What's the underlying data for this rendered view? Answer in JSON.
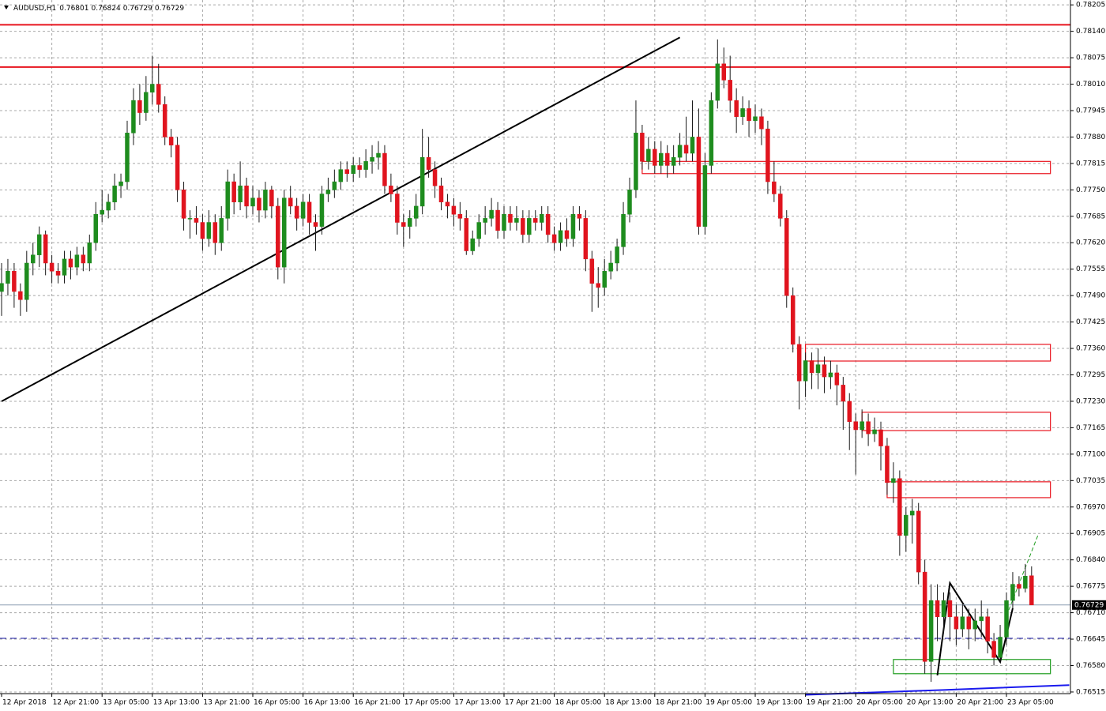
{
  "chart_data": {
    "type": "candlestick",
    "symbol": "AUDUSD,H1",
    "up_color": "#1e8c1e",
    "down_color": "#e0141e",
    "ylim": [
      0.76511,
      0.78217
    ],
    "yticks": [
      0.78205,
      {
        "value": 0.7814,
        "label": "0.78140"
      },
      0.78075,
      {
        "value": 0.7801,
        "label": "0.78010"
      },
      0.77945,
      {
        "value": 0.7788,
        "label": "0.77880"
      },
      0.77815,
      {
        "value": 0.7775,
        "label": "0.77750"
      },
      0.77685,
      {
        "value": 0.7762,
        "label": "0.77620"
      },
      0.77555,
      {
        "value": 0.7749,
        "label": "0.77490"
      },
      0.77425,
      {
        "value": 0.7736,
        "label": "0.77360"
      },
      0.77295,
      {
        "value": 0.7723,
        "label": "0.77230"
      },
      0.77165,
      {
        "value": 0.771,
        "label": "0.77100"
      },
      0.77035,
      {
        "value": 0.7697,
        "label": "0.76970"
      },
      0.76905,
      {
        "value": 0.7684,
        "label": "0.76840"
      },
      0.76775,
      {
        "value": 0.7671,
        "label": "0.76710"
      },
      0.76645,
      {
        "value": 0.7658,
        "label": "0.76580"
      },
      0.76515
    ],
    "grid": true,
    "categories": [
      "12 Apr 2018",
      null,
      null,
      null,
      null,
      null,
      null,
      null,
      "12 Apr 21:00",
      null,
      null,
      null,
      null,
      null,
      null,
      null,
      "13 Apr 05:00",
      null,
      null,
      null,
      null,
      null,
      null,
      null,
      "13 Apr 13:00",
      null,
      null,
      null,
      null,
      null,
      null,
      null,
      "13 Apr 21:00",
      null,
      null,
      null,
      null,
      null,
      null,
      null,
      "16 Apr 05:00",
      null,
      null,
      null,
      null,
      null,
      null,
      null,
      "16 Apr 13:00",
      null,
      null,
      null,
      null,
      null,
      null,
      null,
      "16 Apr 21:00",
      null,
      null,
      null,
      null,
      null,
      null,
      null,
      "17 Apr 05:00",
      null,
      null,
      null,
      null,
      null,
      null,
      null,
      "17 Apr 13:00",
      null,
      null,
      null,
      null,
      null,
      null,
      null,
      "17 Apr 21:00",
      null,
      null,
      null,
      null,
      null,
      null,
      null,
      "18 Apr 05:00",
      null,
      null,
      null,
      null,
      null,
      null,
      null,
      "18 Apr 13:00",
      null,
      null,
      null,
      null,
      null,
      null,
      null,
      "18 Apr 21:00",
      null,
      null,
      null,
      null,
      null,
      null,
      null,
      "19 Apr 05:00",
      null,
      null,
      null,
      null,
      null,
      null,
      null,
      "19 Apr 13:00",
      null,
      null,
      null,
      null,
      null,
      null,
      null,
      "19 Apr 21:00",
      null,
      null,
      null,
      null,
      null,
      null,
      null,
      "20 Apr 05:00",
      null,
      null,
      null,
      null,
      null,
      null,
      null,
      "20 Apr 13:00",
      null,
      null,
      null,
      null,
      null,
      null,
      null,
      "20 Apr 21:00",
      null,
      null,
      null,
      null,
      null,
      null,
      null,
      "23 Apr 05:00",
      null,
      null,
      null,
      null
    ],
    "open": [
      0.775,
      0.7752,
      0.7755,
      0.775,
      0.7748,
      0.7757,
      0.7759,
      0.7764,
      0.7757,
      0.7755,
      0.7754,
      0.7758,
      0.7756,
      0.7759,
      0.7757,
      0.7762,
      0.7769,
      0.777,
      0.7772,
      0.7776,
      0.7777,
      0.7789,
      0.7797,
      0.7794,
      0.7799,
      0.7801,
      0.7796,
      0.7788,
      0.7786,
      0.7775,
      0.7768,
      0.7768,
      0.7767,
      0.7763,
      0.7767,
      0.7762,
      0.7768,
      0.7777,
      0.7772,
      0.7776,
      0.7771,
      0.7773,
      0.777,
      0.7775,
      0.7771,
      0.7756,
      0.7773,
      0.7771,
      0.7768,
      0.7772,
      0.7767,
      0.7766,
      0.7774,
      0.7775,
      0.7777,
      0.778,
      0.7779,
      0.7781,
      0.778,
      0.7782,
      0.7783,
      0.7784,
      0.7776,
      0.7774,
      0.7767,
      0.7766,
      0.7768,
      0.7771,
      0.7783,
      0.778,
      0.7776,
      0.7772,
      0.7771,
      0.7769,
      0.7768,
      0.776,
      0.7763,
      0.7767,
      0.7768,
      0.777,
      0.7765,
      0.7769,
      0.7767,
      0.7768,
      0.7764,
      0.7768,
      0.7767,
      0.7769,
      0.7764,
      0.7762,
      0.7765,
      0.7763,
      0.7769,
      0.7768,
      0.7758,
      0.7752,
      0.7751,
      0.7755,
      0.7757,
      0.7761,
      0.7769,
      0.7775,
      0.7789,
      0.7782,
      0.7785,
      0.7781,
      0.7784,
      0.7781,
      0.7783,
      0.7786,
      0.7784,
      0.7788,
      0.7766,
      0.7781,
      0.7797,
      0.7806,
      0.7802,
      0.7797,
      0.7793,
      0.7795,
      0.7792,
      0.7793,
      0.779,
      0.7777,
      0.7774,
      0.7768,
      0.7749,
      0.7737,
      0.7728,
      0.7733,
      0.773,
      0.7732,
      0.7729,
      0.773,
      0.7727,
      0.7723,
      0.7718,
      0.7716,
      0.7718,
      0.7715,
      0.7716,
      0.7712,
      0.7703,
      0.7704,
      0.769,
      0.7695,
      0.7696,
      0.7681,
      0.7659,
      0.7674,
      0.767,
      0.7674,
      0.767,
      0.7667,
      0.767,
      0.7667,
      0.7669,
      0.767,
      0.7664,
      0.766,
      0.7665,
      0.7674,
      0.7678,
      0.7677,
      0.76801
    ],
    "high": [
      0.7757,
      0.7758,
      0.7757,
      0.7752,
      0.776,
      0.7762,
      0.7766,
      0.7765,
      0.7759,
      0.7757,
      0.776,
      0.776,
      0.7761,
      0.7761,
      0.7764,
      0.7772,
      0.7775,
      0.7774,
      0.7779,
      0.7779,
      0.7792,
      0.78,
      0.7801,
      0.7803,
      0.7808,
      0.7806,
      0.7798,
      0.779,
      0.7788,
      0.7777,
      0.777,
      0.7771,
      0.7769,
      0.777,
      0.7769,
      0.7771,
      0.778,
      0.7779,
      0.7782,
      0.7778,
      0.7776,
      0.7775,
      0.7777,
      0.7776,
      0.7773,
      0.7775,
      0.7776,
      0.7773,
      0.7774,
      0.7774,
      0.7769,
      0.7776,
      0.7778,
      0.778,
      0.7782,
      0.7782,
      0.7783,
      0.7783,
      0.7785,
      0.7786,
      0.7787,
      0.7786,
      0.7779,
      0.7776,
      0.7769,
      0.777,
      0.7774,
      0.779,
      0.7788,
      0.7782,
      0.7778,
      0.7774,
      0.7773,
      0.7772,
      0.777,
      0.7765,
      0.7769,
      0.7771,
      0.7773,
      0.7772,
      0.7771,
      0.7771,
      0.7771,
      0.777,
      0.777,
      0.777,
      0.7771,
      0.7771,
      0.7766,
      0.7767,
      0.7768,
      0.7771,
      0.7771,
      0.777,
      0.776,
      0.7756,
      0.7758,
      0.776,
      0.7763,
      0.7772,
      0.7778,
      0.7797,
      0.7791,
      0.7788,
      0.7787,
      0.7787,
      0.7786,
      0.7786,
      0.7789,
      0.7793,
      0.7797,
      0.7795,
      0.7784,
      0.7799,
      0.7812,
      0.781,
      0.7808,
      0.78,
      0.7798,
      0.7797,
      0.7796,
      0.7795,
      0.7792,
      0.7782,
      0.7776,
      0.777,
      0.7751,
      0.7739,
      0.7735,
      0.7735,
      0.7736,
      0.7734,
      0.7733,
      0.7732,
      0.7729,
      0.7725,
      0.772,
      0.7721,
      0.772,
      0.7719,
      0.7718,
      0.7714,
      0.7708,
      0.7706,
      0.7697,
      0.7699,
      0.7698,
      0.7684,
      0.7678,
      0.7678,
      0.7676,
      0.7676,
      0.7673,
      0.7673,
      0.7672,
      0.7672,
      0.7674,
      0.7672,
      0.7666,
      0.7668,
      0.7676,
      0.7681,
      0.768,
      0.7683,
      0.76824
    ],
    "low": [
      0.7744,
      0.7749,
      0.7746,
      0.7744,
      0.7745,
      0.7754,
      0.7756,
      0.7754,
      0.7752,
      0.7752,
      0.7752,
      0.7753,
      0.7754,
      0.7755,
      0.7755,
      0.776,
      0.7767,
      0.7768,
      0.777,
      0.7773,
      0.7775,
      0.7786,
      0.7791,
      0.7792,
      0.7796,
      0.7794,
      0.7786,
      0.7783,
      0.7772,
      0.7765,
      0.7763,
      0.7764,
      0.776,
      0.7761,
      0.7759,
      0.776,
      0.7765,
      0.7769,
      0.777,
      0.7768,
      0.7769,
      0.7767,
      0.7768,
      0.7768,
      0.7753,
      0.7752,
      0.7769,
      0.7765,
      0.7766,
      0.7764,
      0.776,
      0.7764,
      0.7772,
      0.7773,
      0.7775,
      0.7777,
      0.7777,
      0.7778,
      0.7778,
      0.7779,
      0.778,
      0.7774,
      0.7772,
      0.7764,
      0.7761,
      0.7763,
      0.7766,
      0.7769,
      0.7778,
      0.7773,
      0.777,
      0.7768,
      0.7766,
      0.7765,
      0.7759,
      0.7759,
      0.7761,
      0.7764,
      0.7766,
      0.7763,
      0.7763,
      0.7765,
      0.7765,
      0.7762,
      0.7762,
      0.7765,
      0.7765,
      0.7762,
      0.776,
      0.776,
      0.7761,
      0.7761,
      0.7765,
      0.7755,
      0.7745,
      0.7746,
      0.7749,
      0.7753,
      0.7755,
      0.7759,
      0.7767,
      0.7773,
      0.778,
      0.778,
      0.7779,
      0.7779,
      0.7778,
      0.7779,
      0.7781,
      0.7782,
      0.7782,
      0.7764,
      0.7764,
      0.7779,
      0.7795,
      0.78,
      0.7794,
      0.7789,
      0.7791,
      0.7788,
      0.7789,
      0.7786,
      0.7774,
      0.7772,
      0.7766,
      0.7746,
      0.7735,
      0.7721,
      0.7724,
      0.7726,
      0.7726,
      0.7725,
      0.7726,
      0.7722,
      0.7716,
      0.7711,
      0.7705,
      0.7714,
      0.7712,
      0.7713,
      0.7706,
      0.77,
      0.7698,
      0.7685,
      0.7686,
      0.7688,
      0.7678,
      0.7656,
      0.7654,
      0.7664,
      0.7666,
      0.7664,
      0.7663,
      0.7665,
      0.7662,
      0.7664,
      0.7665,
      0.7661,
      0.7658,
      0.7659,
      0.7663,
      0.7672,
      0.7675,
      0.7676,
      0.76729
    ],
    "close": [
      0.7752,
      0.7755,
      0.775,
      0.7748,
      0.7757,
      0.7759,
      0.7764,
      0.7757,
      0.7755,
      0.7754,
      0.7758,
      0.7756,
      0.7759,
      0.7757,
      0.7762,
      0.7769,
      0.777,
      0.7772,
      0.7776,
      0.7777,
      0.7789,
      0.7797,
      0.7794,
      0.7799,
      0.7801,
      0.7796,
      0.7788,
      0.7786,
      0.7775,
      0.7768,
      0.7768,
      0.7767,
      0.7763,
      0.7767,
      0.7762,
      0.7768,
      0.7777,
      0.7772,
      0.7776,
      0.7771,
      0.7773,
      0.777,
      0.7775,
      0.7771,
      0.7756,
      0.7773,
      0.7771,
      0.7768,
      0.7772,
      0.7767,
      0.7766,
      0.7774,
      0.7775,
      0.7777,
      0.778,
      0.7779,
      0.7781,
      0.778,
      0.7782,
      0.7783,
      0.7784,
      0.7776,
      0.7774,
      0.7767,
      0.7766,
      0.7768,
      0.7771,
      0.7783,
      0.778,
      0.7776,
      0.7772,
      0.7771,
      0.7769,
      0.7768,
      0.776,
      0.7763,
      0.7767,
      0.7768,
      0.777,
      0.7765,
      0.7769,
      0.7767,
      0.7768,
      0.7764,
      0.7768,
      0.7767,
      0.7769,
      0.7764,
      0.7762,
      0.7765,
      0.7763,
      0.7769,
      0.7768,
      0.7758,
      0.7752,
      0.7751,
      0.7755,
      0.7757,
      0.7761,
      0.7769,
      0.7775,
      0.7789,
      0.7782,
      0.7785,
      0.7781,
      0.7784,
      0.7781,
      0.7783,
      0.7786,
      0.7784,
      0.7788,
      0.7766,
      0.7781,
      0.7797,
      0.7806,
      0.7802,
      0.7797,
      0.7793,
      0.7795,
      0.7792,
      0.7793,
      0.779,
      0.7777,
      0.7774,
      0.7768,
      0.7749,
      0.7737,
      0.7728,
      0.7733,
      0.773,
      0.7732,
      0.7729,
      0.773,
      0.7727,
      0.7723,
      0.7718,
      0.7716,
      0.7718,
      0.7715,
      0.7716,
      0.7712,
      0.7703,
      0.7704,
      0.769,
      0.7695,
      0.7696,
      0.7681,
      0.7659,
      0.7674,
      0.767,
      0.7674,
      0.767,
      0.7667,
      0.767,
      0.7667,
      0.7669,
      0.767,
      0.7664,
      0.766,
      0.7665,
      0.7674,
      0.7678,
      0.7677,
      0.768,
      0.76729
    ],
    "levels": [
      {
        "value": 0.78156,
        "color": "#e8141e",
        "dashed": false
      },
      {
        "value": 0.78052,
        "color": "#e8141e",
        "dashed": false
      },
      {
        "value": 0.76647,
        "color": "#1a1aa6",
        "dashed": true
      }
    ],
    "zones": [
      {
        "from": 102,
        "to": 167,
        "low": 0.7779,
        "high": 0.7782,
        "color": "#e8141e"
      },
      {
        "from": 128,
        "to": 167,
        "low": 0.77329,
        "high": 0.7737,
        "color": "#e8141e"
      },
      {
        "from": 137,
        "to": 167,
        "low": 0.77158,
        "high": 0.77203,
        "color": "#e8141e"
      },
      {
        "from": 141,
        "to": 167,
        "low": 0.76993,
        "high": 0.77032,
        "color": "#e8141e"
      },
      {
        "from": 142,
        "to": 167,
        "low": 0.7656,
        "high": 0.76595,
        "color": "#1e9c1e"
      }
    ],
    "lines": [
      {
        "x": [
          0,
          108
        ],
        "y": [
          0.7723,
          0.78125
        ],
        "color": "#000000",
        "dashed": false
      },
      {
        "x": [
          149,
          151,
          159,
          161
        ],
        "y": [
          0.76556,
          0.76783,
          0.76589,
          0.76721
        ],
        "color": "#000000",
        "dashed": false
      },
      {
        "x": [
          160,
          165
        ],
        "y": [
          0.76702,
          0.769
        ],
        "color": "#1e9c1e",
        "dashed": true
      },
      {
        "x": [
          128,
          150,
          170
        ],
        "y": [
          0.76508,
          0.7652,
          0.76532
        ],
        "color": "#1a1aee",
        "dashed": false
      }
    ]
  }
}
